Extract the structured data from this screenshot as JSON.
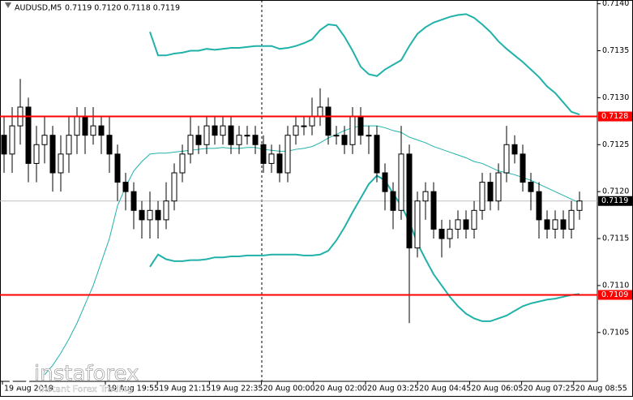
{
  "chart_data": {
    "type": "candlestick",
    "symbol": "AUDUSD,M5",
    "quote": "0.7119 0.7120 0.7118 0.7119",
    "ylim": [
      0.70998,
      0.71404
    ],
    "yticks": [
      0.7105,
      {
        "value": 0.711,
        "label": "0.7110"
      },
      0.7115,
      {
        "value": 0.712,
        "label": "0.7120"
      },
      0.7125,
      {
        "value": 0.713,
        "label": "0.7130"
      },
      0.7135,
      {
        "value": 0.714,
        "label": "0.7140"
      }
    ],
    "time_labels": [
      "19 Aug 2019",
      "19 Aug 19:55",
      "19 Aug 21:15",
      "19 Aug 22:35",
      "20 Aug 00:00",
      "20 Aug 02:00",
      "20 Aug 03:25",
      "20 Aug 04:45",
      "20 Aug 06:05",
      "20 Aug 07:25",
      "20 Aug 08:55"
    ],
    "candles": [
      [
        0.7126,
        0.7128,
        0.7122,
        0.7124
      ],
      [
        0.7124,
        0.7129,
        0.7122,
        0.7127
      ],
      [
        0.7127,
        0.7132,
        0.7125,
        0.7129
      ],
      [
        0.7129,
        0.713,
        0.7121,
        0.7123
      ],
      [
        0.7123,
        0.7127,
        0.7121,
        0.7125
      ],
      [
        0.7125,
        0.7128,
        0.7123,
        0.7126
      ],
      [
        0.7126,
        0.7127,
        0.712,
        0.7122
      ],
      [
        0.7122,
        0.7126,
        0.712,
        0.7124
      ],
      [
        0.7124,
        0.7128,
        0.7122,
        0.7126
      ],
      [
        0.7126,
        0.7129,
        0.7124,
        0.7128
      ],
      [
        0.7128,
        0.7129,
        0.7124,
        0.7126
      ],
      [
        0.7126,
        0.7129,
        0.7125,
        0.7127
      ],
      [
        0.7127,
        0.7128,
        0.7124,
        0.7126
      ],
      [
        0.7126,
        0.7128,
        0.7122,
        0.7124
      ],
      [
        0.7124,
        0.7125,
        0.7119,
        0.7121
      ],
      [
        0.7121,
        0.7122,
        0.7118,
        0.712
      ],
      [
        0.712,
        0.7121,
        0.7116,
        0.7118
      ],
      [
        0.7118,
        0.7119,
        0.7115,
        0.7117
      ],
      [
        0.7117,
        0.712,
        0.7115,
        0.7118
      ],
      [
        0.7118,
        0.7119,
        0.7115,
        0.7117
      ],
      [
        0.7117,
        0.7121,
        0.7116,
        0.7119
      ],
      [
        0.7119,
        0.7123,
        0.7118,
        0.7122
      ],
      [
        0.7122,
        0.7125,
        0.7121,
        0.7124
      ],
      [
        0.7124,
        0.7128,
        0.7123,
        0.7126
      ],
      [
        0.7126,
        0.7127,
        0.7124,
        0.7125
      ],
      [
        0.7125,
        0.7128,
        0.7124,
        0.7127
      ],
      [
        0.7127,
        0.7128,
        0.7125,
        0.7126
      ],
      [
        0.7126,
        0.7128,
        0.7125,
        0.7127
      ],
      [
        0.7127,
        0.7128,
        0.7124,
        0.7125
      ],
      [
        0.7125,
        0.7127,
        0.7124,
        0.7126
      ],
      [
        0.7126,
        0.7127,
        0.7125,
        0.7126
      ],
      [
        0.7126,
        0.7127,
        0.7124,
        0.7125
      ],
      [
        0.7125,
        0.7126,
        0.7122,
        0.7123
      ],
      [
        0.7123,
        0.7125,
        0.7122,
        0.7124
      ],
      [
        0.7124,
        0.7125,
        0.7121,
        0.7122
      ],
      [
        0.7122,
        0.7127,
        0.7121,
        0.7126
      ],
      [
        0.7126,
        0.7128,
        0.7125,
        0.7127
      ],
      [
        0.7127,
        0.7128,
        0.7126,
        0.7127
      ],
      [
        0.7127,
        0.713,
        0.7126,
        0.7128
      ],
      [
        0.7128,
        0.7131,
        0.7127,
        0.7129
      ],
      [
        0.7129,
        0.713,
        0.7125,
        0.7126
      ],
      [
        0.7126,
        0.7127,
        0.7125,
        0.7126
      ],
      [
        0.7126,
        0.7127,
        0.7124,
        0.7125
      ],
      [
        0.7125,
        0.7129,
        0.7124,
        0.7128
      ],
      [
        0.7128,
        0.7129,
        0.7125,
        0.7126
      ],
      [
        0.7126,
        0.7127,
        0.7124,
        0.7126
      ],
      [
        0.7126,
        0.7127,
        0.7121,
        0.7122
      ],
      [
        0.7122,
        0.7123,
        0.7118,
        0.712
      ],
      [
        0.712,
        0.7121,
        0.7116,
        0.7118
      ],
      [
        0.7118,
        0.7127,
        0.7117,
        0.7124
      ],
      [
        0.7124,
        0.7125,
        0.7106,
        0.7114
      ],
      [
        0.7114,
        0.712,
        0.7113,
        0.7119
      ],
      [
        0.7119,
        0.7121,
        0.7117,
        0.712
      ],
      [
        0.712,
        0.7121,
        0.7115,
        0.7116
      ],
      [
        0.7116,
        0.7117,
        0.7113,
        0.7115
      ],
      [
        0.7115,
        0.7117,
        0.7114,
        0.7116
      ],
      [
        0.7116,
        0.7118,
        0.7115,
        0.7117
      ],
      [
        0.7117,
        0.7118,
        0.7115,
        0.7116
      ],
      [
        0.7116,
        0.7119,
        0.7115,
        0.7118
      ],
      [
        0.7118,
        0.7122,
        0.7117,
        0.7121
      ],
      [
        0.7121,
        0.7122,
        0.7118,
        0.7119
      ],
      [
        0.7119,
        0.7123,
        0.7118,
        0.7122
      ],
      [
        0.7122,
        0.7127,
        0.7121,
        0.7125
      ],
      [
        0.7125,
        0.7126,
        0.7123,
        0.7124
      ],
      [
        0.7124,
        0.7125,
        0.712,
        0.7121
      ],
      [
        0.7121,
        0.7122,
        0.7118,
        0.712
      ],
      [
        0.712,
        0.7121,
        0.7115,
        0.7117
      ],
      [
        0.7117,
        0.7118,
        0.7115,
        0.7116
      ],
      [
        0.7116,
        0.7118,
        0.7115,
        0.7117
      ],
      [
        0.7117,
        0.7118,
        0.7115,
        0.7116
      ],
      [
        0.7116,
        0.7119,
        0.7115,
        0.7118
      ],
      [
        0.7118,
        0.712,
        0.7117,
        0.7119
      ]
    ],
    "bands": [
      {
        "color": "#20b2aa",
        "values": [
          null,
          null,
          null,
          null,
          null,
          null,
          null,
          null,
          null,
          null,
          null,
          null,
          null,
          null,
          null,
          null,
          null,
          null,
          0.7137,
          0.71345,
          0.71345,
          0.71347,
          0.71348,
          0.7135,
          0.7135,
          0.71352,
          0.71351,
          0.71352,
          0.71353,
          0.71353,
          0.71354,
          0.71355,
          0.71355,
          0.71355,
          0.71352,
          0.71353,
          0.71355,
          0.71358,
          0.71362,
          0.71372,
          0.71378,
          0.71377,
          0.71365,
          0.7135,
          0.71333,
          0.71325,
          0.71323,
          0.7133,
          0.71335,
          0.7134,
          0.71355,
          0.71368,
          0.71375,
          0.7138,
          0.71383,
          0.71386,
          0.71388,
          0.71389,
          0.71385,
          0.71378,
          0.7137,
          0.7136,
          0.71352,
          0.71345,
          0.71338,
          0.7133,
          0.71322,
          0.71312,
          0.71305,
          0.71295,
          0.71285,
          0.71282
        ]
      },
      {
        "color": "#20b2aa",
        "values": [
          null,
          null,
          null,
          null,
          null,
          0.71005,
          0.71015,
          0.71028,
          0.71043,
          0.7106,
          0.7108,
          0.711,
          0.71125,
          0.7115,
          0.71185,
          0.71205,
          0.71222,
          0.71232,
          0.7124,
          0.71241,
          0.71241,
          0.71242,
          0.71243,
          0.71244,
          0.71245,
          0.71246,
          0.71246,
          0.71247,
          0.71246,
          0.71246,
          0.71247,
          0.71247,
          0.71245,
          0.71244,
          0.71243,
          0.71243,
          0.71245,
          0.71246,
          0.71248,
          0.71252,
          0.71257,
          0.71261,
          0.71265,
          0.71268,
          0.7127,
          0.7127,
          0.7127,
          0.71268,
          0.71265,
          0.71263,
          0.71258,
          0.71255,
          0.71252,
          0.71248,
          0.71245,
          0.71242,
          0.71239,
          0.71236,
          0.71232,
          0.7123,
          0.71226,
          0.71222,
          0.7122,
          0.71218,
          0.71215,
          0.71212,
          0.71208,
          0.71204,
          0.712,
          0.71196,
          0.71192,
          0.71188
        ]
      },
      {
        "color": "#20b2aa",
        "values": [
          null,
          null,
          null,
          null,
          null,
          null,
          null,
          null,
          null,
          null,
          null,
          null,
          null,
          null,
          null,
          null,
          null,
          null,
          0.7112,
          0.71133,
          0.71128,
          0.71126,
          0.71126,
          0.71127,
          0.71127,
          0.71128,
          0.7113,
          0.7113,
          0.71131,
          0.71131,
          0.71132,
          0.71132,
          0.71132,
          0.71133,
          0.71133,
          0.71133,
          0.71133,
          0.71132,
          0.71132,
          0.71133,
          0.71137,
          0.71148,
          0.71162,
          0.71178,
          0.71193,
          0.71208,
          0.71217,
          0.71212,
          0.71198,
          0.71185,
          0.71168,
          0.71145,
          0.71128,
          0.71112,
          0.711,
          0.71088,
          0.71078,
          0.7107,
          0.71065,
          0.71062,
          0.71062,
          0.71065,
          0.71068,
          0.71073,
          0.71078,
          0.71081,
          0.71083,
          0.71085,
          0.71086,
          0.71088,
          0.7109,
          0.71091
        ]
      }
    ],
    "levels": [
      {
        "value": 0.7128,
        "label": "0.7128"
      },
      0.7109
    ],
    "level_color": "#ff0000",
    "current_price": 0.7119,
    "watermark": "instaforex",
    "watermark_sub": "Instant Forex Trading"
  }
}
